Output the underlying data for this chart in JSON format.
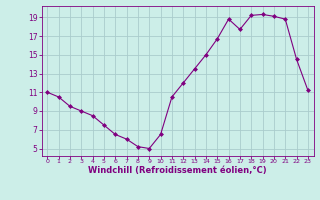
{
  "x": [
    0,
    1,
    2,
    3,
    4,
    5,
    6,
    7,
    8,
    9,
    10,
    11,
    12,
    13,
    14,
    15,
    16,
    17,
    18,
    19,
    20,
    21,
    22,
    23
  ],
  "y": [
    11,
    10.5,
    9.5,
    9,
    8.5,
    7.5,
    6.5,
    6,
    5.2,
    5,
    6.5,
    10.5,
    12,
    13.5,
    15,
    16.7,
    18.8,
    17.7,
    19.2,
    19.3,
    19.1,
    18.8,
    14.5,
    11.2
  ],
  "line_color": "#800080",
  "marker": "D",
  "marker_size": 2.0,
  "bg_color": "#cceee8",
  "grid_color": "#aacccc",
  "xlabel": "Windchill (Refroidissement éolien,°C)",
  "xlabel_color": "#800080",
  "tick_color": "#800080",
  "xlim": [
    -0.5,
    23.5
  ],
  "ylim": [
    4.2,
    20.2
  ],
  "yticks": [
    5,
    7,
    9,
    11,
    13,
    15,
    17,
    19
  ],
  "xticks": [
    0,
    1,
    2,
    3,
    4,
    5,
    6,
    7,
    8,
    9,
    10,
    11,
    12,
    13,
    14,
    15,
    16,
    17,
    18,
    19,
    20,
    21,
    22,
    23
  ],
  "figsize": [
    3.2,
    2.0
  ],
  "dpi": 100
}
